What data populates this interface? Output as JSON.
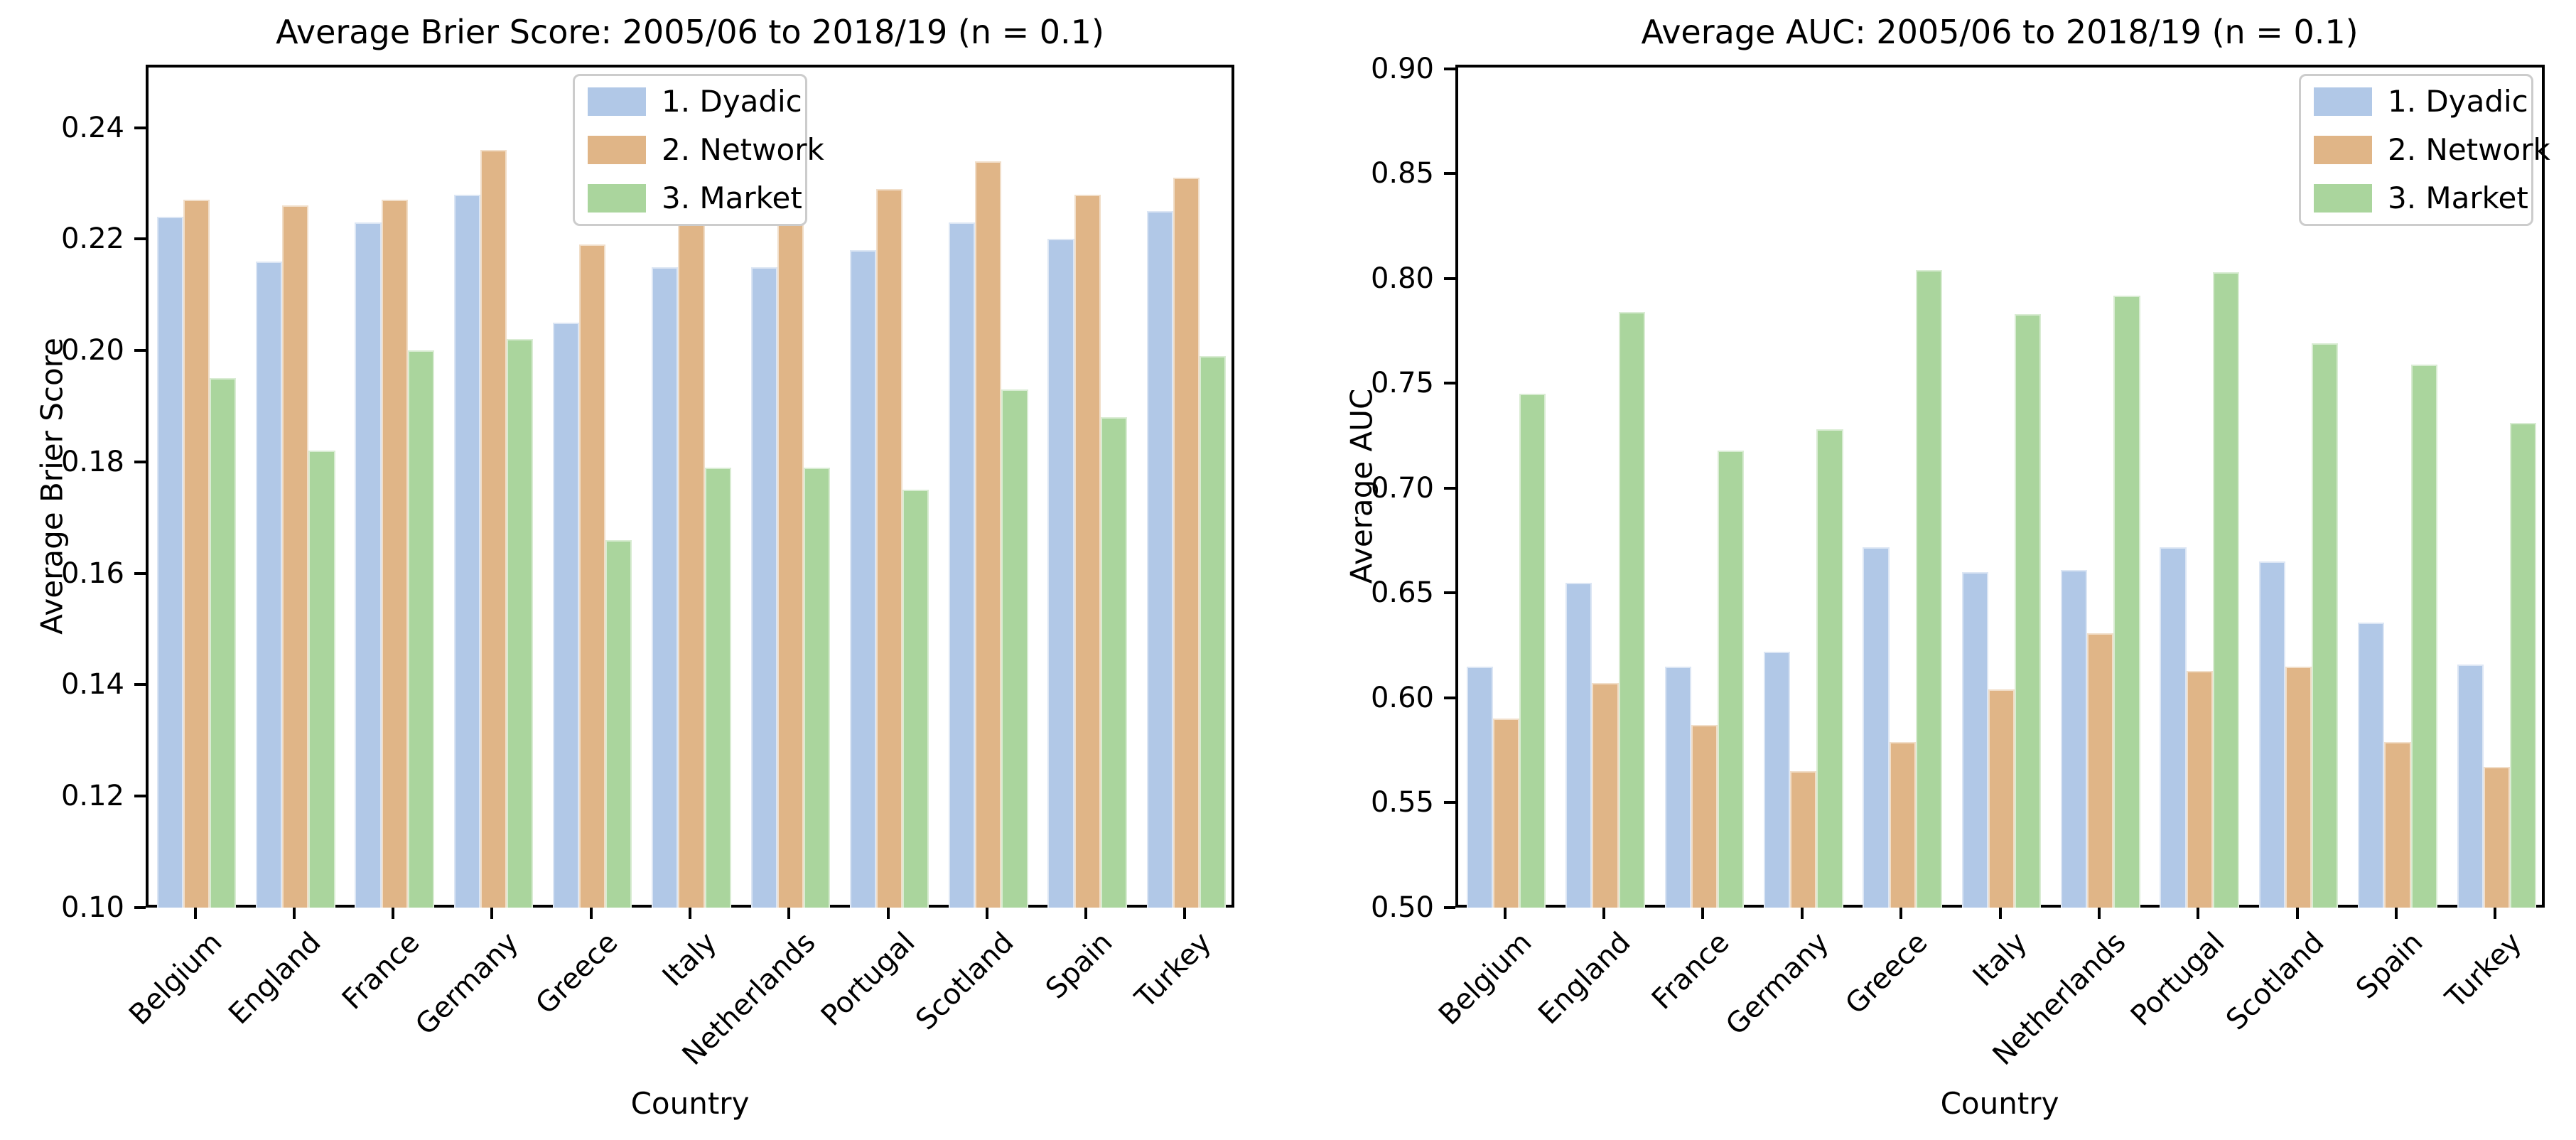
{
  "figure": {
    "background_color": "#ffffff",
    "text_color": "#000000",
    "series_colors": {
      "dyadic": "#b1c8e7",
      "network": "#e0b587",
      "market": "#aad59d"
    }
  },
  "chart_data": [
    {
      "type": "bar",
      "title": "Average Brier Score: 2005/06 to 2018/19 (n = 0.1)",
      "xlabel": "Country",
      "ylabel": "Average Brier Score",
      "categories": [
        "Belgium",
        "England",
        "France",
        "Germany",
        "Greece",
        "Italy",
        "Netherlands",
        "Portugal",
        "Scotland",
        "Spain",
        "Turkey"
      ],
      "series": [
        {
          "name": "1. Dyadic",
          "color": "#b1c8e7",
          "values": [
            0.224,
            0.216,
            0.223,
            0.228,
            0.205,
            0.215,
            0.215,
            0.218,
            0.223,
            0.22,
            0.225
          ]
        },
        {
          "name": "2. Network",
          "color": "#e0b587",
          "values": [
            0.227,
            0.226,
            0.227,
            0.236,
            0.219,
            0.223,
            0.223,
            0.229,
            0.234,
            0.228,
            0.231
          ]
        },
        {
          "name": "3. Market",
          "color": "#aad59d",
          "values": [
            0.195,
            0.182,
            0.2,
            0.202,
            0.166,
            0.179,
            0.179,
            0.175,
            0.193,
            0.188,
            0.199
          ]
        }
      ],
      "ylim": [
        0.1,
        0.2513
      ],
      "yticks": [
        0.1,
        0.12,
        0.14,
        0.16,
        0.18,
        0.2,
        0.22,
        0.24
      ],
      "ytick_format_decimals": 2,
      "grid": false,
      "legend_loc": "upper center",
      "bar_group_fraction": 0.8
    },
    {
      "type": "bar",
      "title": "Average AUC: 2005/06 to 2018/19 (n = 0.1)",
      "xlabel": "Country",
      "ylabel": "Average AUC",
      "categories": [
        "Belgium",
        "England",
        "France",
        "Germany",
        "Greece",
        "Italy",
        "Netherlands",
        "Portugal",
        "Scotland",
        "Spain",
        "Turkey"
      ],
      "series": [
        {
          "name": "1. Dyadic",
          "color": "#b1c8e7",
          "values": [
            0.615,
            0.655,
            0.615,
            0.622,
            0.672,
            0.66,
            0.661,
            0.672,
            0.665,
            0.636,
            0.616
          ]
        },
        {
          "name": "2. Network",
          "color": "#e0b587",
          "values": [
            0.59,
            0.607,
            0.587,
            0.565,
            0.579,
            0.604,
            0.631,
            0.613,
            0.615,
            0.579,
            0.567
          ]
        },
        {
          "name": "3. Market",
          "color": "#aad59d",
          "values": [
            0.745,
            0.784,
            0.718,
            0.728,
            0.804,
            0.783,
            0.792,
            0.803,
            0.769,
            0.759,
            0.731
          ]
        }
      ],
      "ylim": [
        0.5,
        0.902
      ],
      "yticks": [
        0.5,
        0.55,
        0.6,
        0.65,
        0.7,
        0.75,
        0.8,
        0.85,
        0.9
      ],
      "ytick_format_decimals": 2,
      "grid": false,
      "legend_loc": "upper right",
      "bar_group_fraction": 0.8
    }
  ]
}
